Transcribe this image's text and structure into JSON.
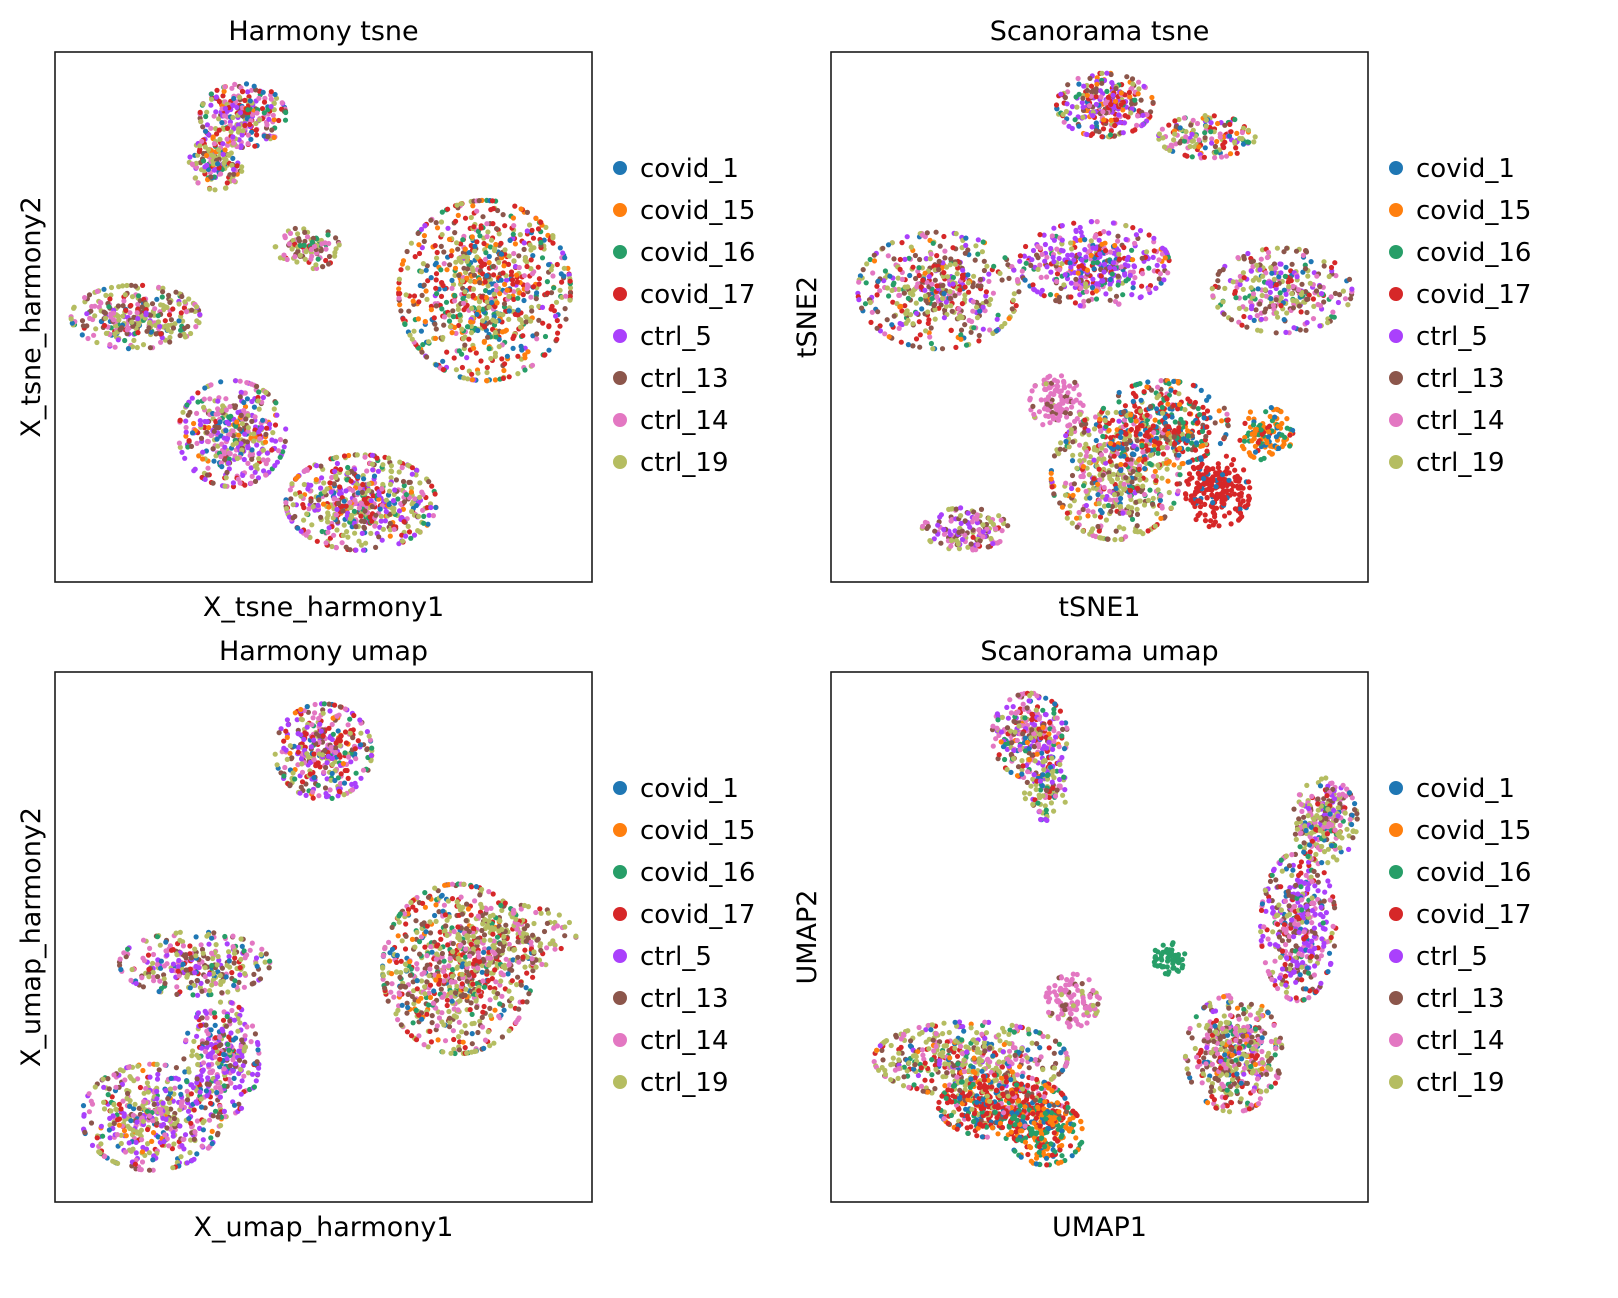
{
  "chart_data": [
    {
      "type": "scatter",
      "title": "Harmony tsne",
      "xlabel": "X_tsne_harmony1",
      "ylabel": "X_tsne_harmony2",
      "grid": false,
      "legend_position": "right",
      "clusters": [
        {
          "cx": 0.35,
          "cy": 0.12,
          "rx": 0.08,
          "ry": 0.06,
          "n": 260,
          "mix": [
            1,
            1,
            1,
            3,
            3,
            1,
            3,
            2
          ]
        },
        {
          "cx": 0.3,
          "cy": 0.21,
          "rx": 0.05,
          "ry": 0.05,
          "n": 140,
          "mix": [
            1,
            1,
            1,
            1,
            1,
            1,
            2,
            4
          ]
        },
        {
          "cx": 0.15,
          "cy": 0.5,
          "rx": 0.12,
          "ry": 0.06,
          "n": 300,
          "mix": [
            1,
            0,
            1,
            1,
            1,
            3,
            3,
            4
          ]
        },
        {
          "cx": 0.33,
          "cy": 0.72,
          "rx": 0.1,
          "ry": 0.1,
          "n": 400,
          "mix": [
            1,
            1,
            1,
            1,
            4,
            2,
            4,
            2
          ]
        },
        {
          "cx": 0.57,
          "cy": 0.85,
          "rx": 0.14,
          "ry": 0.09,
          "n": 550,
          "mix": [
            1,
            1,
            1,
            2,
            3,
            2,
            3,
            5
          ]
        },
        {
          "cx": 0.8,
          "cy": 0.45,
          "rx": 0.16,
          "ry": 0.17,
          "n": 800,
          "mix": [
            2,
            2,
            2,
            4,
            1,
            2,
            2,
            4
          ]
        },
        {
          "cx": 0.47,
          "cy": 0.37,
          "rx": 0.06,
          "ry": 0.04,
          "n": 100,
          "mix": [
            0,
            0,
            1,
            1,
            0,
            3,
            3,
            3
          ]
        }
      ]
    },
    {
      "type": "scatter",
      "title": "Scanorama tsne",
      "xlabel": "tSNE1",
      "ylabel": "tSNE2",
      "grid": false,
      "legend_position": "right",
      "clusters": [
        {
          "cx": 0.51,
          "cy": 0.1,
          "rx": 0.09,
          "ry": 0.06,
          "n": 280,
          "mix": [
            1,
            1,
            1,
            3,
            4,
            2,
            2,
            1
          ]
        },
        {
          "cx": 0.7,
          "cy": 0.16,
          "rx": 0.09,
          "ry": 0.04,
          "n": 150,
          "mix": [
            1,
            1,
            1,
            2,
            1,
            1,
            2,
            4
          ]
        },
        {
          "cx": 0.2,
          "cy": 0.45,
          "rx": 0.15,
          "ry": 0.11,
          "n": 450,
          "mix": [
            1,
            1,
            1,
            2,
            2,
            4,
            3,
            5
          ]
        },
        {
          "cx": 0.49,
          "cy": 0.4,
          "rx": 0.14,
          "ry": 0.08,
          "n": 400,
          "mix": [
            1,
            1,
            1,
            2,
            6,
            2,
            3,
            1
          ]
        },
        {
          "cx": 0.84,
          "cy": 0.45,
          "rx": 0.13,
          "ry": 0.08,
          "n": 300,
          "mix": [
            1,
            0,
            1,
            1,
            2,
            3,
            3,
            4
          ]
        },
        {
          "cx": 0.53,
          "cy": 0.8,
          "rx": 0.12,
          "ry": 0.12,
          "n": 500,
          "mix": [
            1,
            1,
            1,
            2,
            1,
            3,
            2,
            6
          ]
        },
        {
          "cx": 0.62,
          "cy": 0.7,
          "rx": 0.12,
          "ry": 0.08,
          "n": 350,
          "mix": [
            3,
            2,
            3,
            6,
            0,
            1,
            1,
            1
          ]
        },
        {
          "cx": 0.72,
          "cy": 0.83,
          "rx": 0.06,
          "ry": 0.07,
          "n": 200,
          "mix": [
            1,
            0,
            0,
            9,
            0,
            0,
            0,
            0
          ]
        },
        {
          "cx": 0.81,
          "cy": 0.72,
          "rx": 0.05,
          "ry": 0.05,
          "n": 120,
          "mix": [
            1,
            4,
            3,
            1,
            0,
            0,
            0,
            0
          ]
        },
        {
          "cx": 0.25,
          "cy": 0.9,
          "rx": 0.08,
          "ry": 0.04,
          "n": 150,
          "mix": [
            0,
            0,
            0,
            1,
            2,
            3,
            3,
            3
          ]
        },
        {
          "cx": 0.42,
          "cy": 0.66,
          "rx": 0.05,
          "ry": 0.05,
          "n": 120,
          "mix": [
            0,
            0,
            0,
            0,
            0,
            1,
            8,
            1
          ]
        }
      ]
    },
    {
      "type": "scatter",
      "title": "Harmony umap",
      "xlabel": "X_umap_harmony1",
      "ylabel": "X_umap_harmony2",
      "grid": false,
      "legend_position": "right",
      "clusters": [
        {
          "cx": 0.5,
          "cy": 0.15,
          "rx": 0.09,
          "ry": 0.09,
          "n": 350,
          "mix": [
            1,
            1,
            1,
            3,
            3,
            3,
            3,
            2
          ]
        },
        {
          "cx": 0.18,
          "cy": 0.84,
          "rx": 0.13,
          "ry": 0.1,
          "n": 450,
          "mix": [
            1,
            1,
            1,
            1,
            4,
            2,
            4,
            5
          ]
        },
        {
          "cx": 0.31,
          "cy": 0.73,
          "rx": 0.07,
          "ry": 0.11,
          "n": 300,
          "mix": [
            1,
            0,
            1,
            1,
            5,
            2,
            3,
            2
          ]
        },
        {
          "cx": 0.26,
          "cy": 0.55,
          "rx": 0.14,
          "ry": 0.06,
          "n": 300,
          "mix": [
            1,
            0,
            1,
            1,
            2,
            3,
            4,
            4
          ]
        },
        {
          "cx": 0.75,
          "cy": 0.56,
          "rx": 0.14,
          "ry": 0.16,
          "n": 800,
          "mix": [
            1,
            1,
            1,
            3,
            0,
            3,
            3,
            5
          ]
        },
        {
          "cx": 0.86,
          "cy": 0.5,
          "rx": 0.11,
          "ry": 0.06,
          "n": 160,
          "mix": [
            0,
            0,
            0,
            1,
            0,
            3,
            2,
            3
          ]
        }
      ]
    },
    {
      "type": "scatter",
      "title": "Scanorama umap",
      "xlabel": "UMAP1",
      "ylabel": "UMAP2",
      "grid": false,
      "legend_position": "right",
      "clusters": [
        {
          "cx": 0.37,
          "cy": 0.12,
          "rx": 0.07,
          "ry": 0.08,
          "n": 280,
          "mix": [
            1,
            1,
            1,
            3,
            3,
            3,
            4,
            2
          ]
        },
        {
          "cx": 0.4,
          "cy": 0.22,
          "rx": 0.04,
          "ry": 0.06,
          "n": 100,
          "mix": [
            1,
            0,
            1,
            1,
            2,
            1,
            1,
            4
          ]
        },
        {
          "cx": 0.26,
          "cy": 0.73,
          "rx": 0.18,
          "ry": 0.07,
          "n": 500,
          "mix": [
            1,
            1,
            1,
            1,
            1,
            2,
            3,
            7
          ]
        },
        {
          "cx": 0.32,
          "cy": 0.82,
          "rx": 0.12,
          "ry": 0.06,
          "n": 450,
          "mix": [
            2,
            2,
            2,
            9,
            0,
            1,
            1,
            1
          ]
        },
        {
          "cx": 0.4,
          "cy": 0.87,
          "rx": 0.07,
          "ry": 0.06,
          "n": 200,
          "mix": [
            2,
            4,
            5,
            2,
            0,
            0,
            0,
            0
          ]
        },
        {
          "cx": 0.45,
          "cy": 0.62,
          "rx": 0.05,
          "ry": 0.05,
          "n": 120,
          "mix": [
            0,
            0,
            0,
            0,
            0,
            1,
            8,
            1
          ]
        },
        {
          "cx": 0.75,
          "cy": 0.72,
          "rx": 0.09,
          "ry": 0.11,
          "n": 450,
          "mix": [
            1,
            1,
            1,
            2,
            1,
            4,
            4,
            5
          ]
        },
        {
          "cx": 0.87,
          "cy": 0.48,
          "rx": 0.07,
          "ry": 0.14,
          "n": 400,
          "mix": [
            1,
            0,
            1,
            2,
            5,
            3,
            4,
            2
          ]
        },
        {
          "cx": 0.92,
          "cy": 0.28,
          "rx": 0.06,
          "ry": 0.08,
          "n": 260,
          "mix": [
            1,
            0,
            1,
            1,
            1,
            3,
            3,
            5
          ]
        },
        {
          "cx": 0.63,
          "cy": 0.54,
          "rx": 0.03,
          "ry": 0.03,
          "n": 60,
          "mix": [
            0,
            0,
            9,
            0,
            0,
            0,
            0,
            0
          ]
        }
      ]
    }
  ],
  "legend": [
    {
      "label": "covid_1",
      "color": "#1f77b4"
    },
    {
      "label": "covid_15",
      "color": "#ff7f0e"
    },
    {
      "label": "covid_16",
      "color": "#279e68"
    },
    {
      "label": "covid_17",
      "color": "#d62728"
    },
    {
      "label": "ctrl_5",
      "color": "#aa40fc"
    },
    {
      "label": "ctrl_13",
      "color": "#8c564b"
    },
    {
      "label": "ctrl_14",
      "color": "#e377c2"
    },
    {
      "label": "ctrl_19",
      "color": "#b5bd61"
    }
  ]
}
